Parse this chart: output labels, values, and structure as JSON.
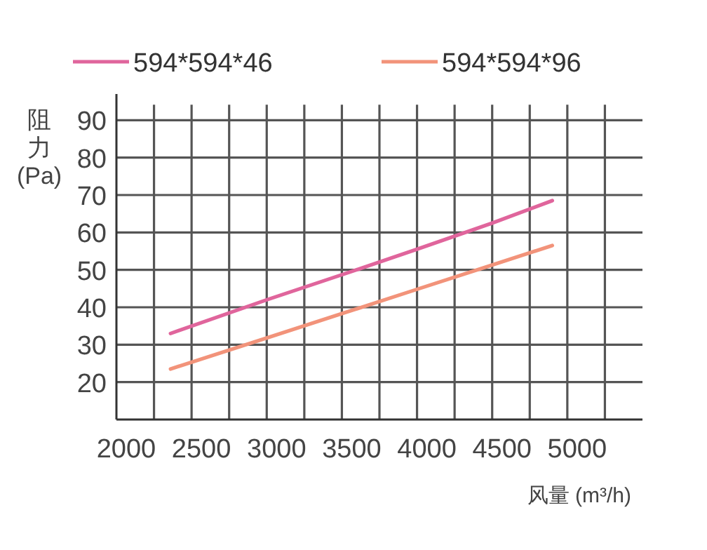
{
  "chart_data": {
    "type": "line",
    "xlabel": "风量 (m³/h)",
    "ylabel": "阻力 (Pa)",
    "series": [
      {
        "name": "594*594*46",
        "color": "#e0659c",
        "x": [
          2360,
          3000,
          3500,
          4000,
          4500,
          4900
        ],
        "values": [
          33,
          42,
          48.7,
          55.5,
          62.5,
          68.5
        ]
      },
      {
        "name": "594*594*96",
        "color": "#f2937a",
        "x": [
          2360,
          3000,
          3500,
          4000,
          4500,
          4900
        ],
        "values": [
          23.5,
          31.8,
          38.3,
          44.8,
          51.3,
          56.5
        ]
      }
    ],
    "xlim": [
      2000,
      5500
    ],
    "xticks": [
      2000,
      {
        "value": 2250,
        "label": null
      },
      2500,
      {
        "value": 2750,
        "label": null
      },
      3000,
      {
        "value": 3250,
        "label": null
      },
      3500,
      {
        "value": 3750,
        "label": null
      },
      4000,
      {
        "value": 4250,
        "label": null
      },
      4500,
      {
        "value": 4750,
        "label": null
      },
      5000,
      {
        "value": 5250,
        "label": null
      }
    ],
    "ylim": [
      10,
      97
    ],
    "yticks": [
      20,
      30,
      40,
      50,
      60,
      70,
      80,
      90
    ],
    "grid": true,
    "legend": "top",
    "marker": "none",
    "line_style": "solid"
  }
}
